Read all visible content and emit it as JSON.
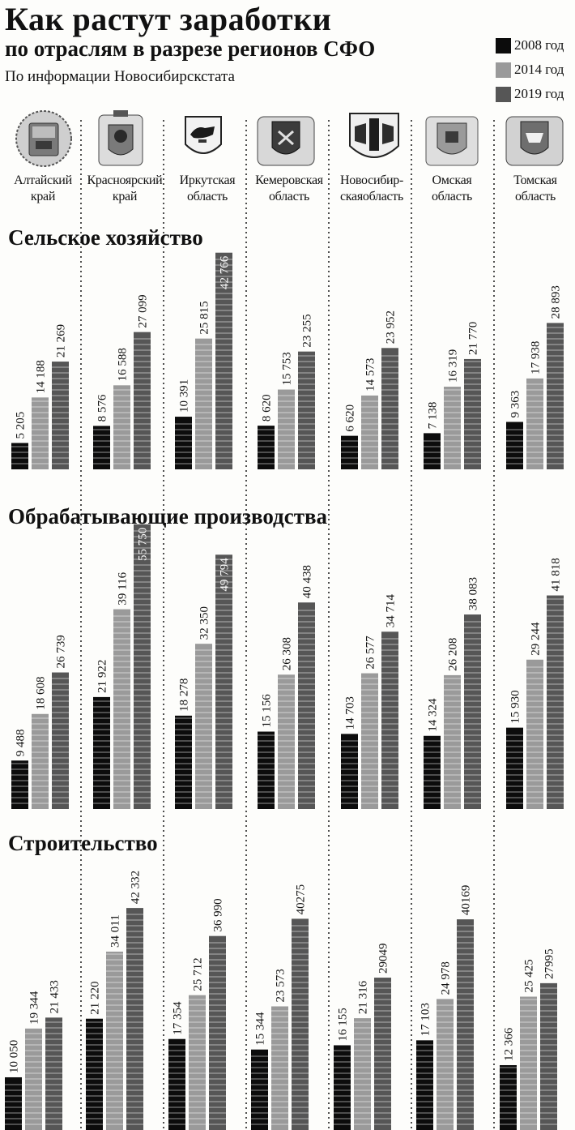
{
  "title": "Как растут заработки",
  "subtitle": "по отраслям в разрезе регионов СФО",
  "source": "По информации Новосибирскстата",
  "legend": [
    {
      "label": "2008 год",
      "color": "#0c0c0c"
    },
    {
      "label": "2014 год",
      "color": "#9a9a9a"
    },
    {
      "label": "2019 год",
      "color": "#565656"
    }
  ],
  "regions": [
    {
      "line1": "Алтайский",
      "line2": "край",
      "emblem": "altai-krai-emblem"
    },
    {
      "line1": "Красноярский",
      "line2": "край",
      "emblem": "krasnoyarsk-krai-emblem"
    },
    {
      "line1": "Иркутская",
      "line2": "область",
      "emblem": "irkutsk-oblast-emblem"
    },
    {
      "line1": "Кемеровская",
      "line2": "область",
      "emblem": "kemerovo-oblast-emblem"
    },
    {
      "line1": "Новосибир-",
      "line2": "скаяобласть",
      "emblem": "novosibirsk-oblast-emblem"
    },
    {
      "line1": "Омская",
      "line2": "область",
      "emblem": "omsk-oblast-emblem"
    },
    {
      "line1": "Томская",
      "line2": "область",
      "emblem": "tomsk-oblast-emblem"
    }
  ],
  "chart_data": [
    {
      "type": "bar",
      "title": "Сельское хозяйство",
      "categories": [
        "Алтайский край",
        "Красноярский край",
        "Иркутская область",
        "Кемеровская область",
        "Новосибирская область",
        "Омская область",
        "Томская область"
      ],
      "series": [
        {
          "name": "2008 год",
          "values": [
            5205,
            8576,
            10391,
            8620,
            6620,
            7138,
            9363
          ],
          "labels": [
            "5 205",
            "8 576",
            "10 391",
            "8 620",
            "6 620",
            "7 138",
            "9 363"
          ]
        },
        {
          "name": "2014 год",
          "values": [
            14188,
            16588,
            25815,
            15753,
            14573,
            16319,
            17938
          ],
          "labels": [
            "14 188",
            "16 588",
            "25 815",
            "15 753",
            "14 573",
            "16 319",
            "17 938"
          ]
        },
        {
          "name": "2019 год",
          "values": [
            21269,
            27099,
            42766,
            23255,
            23952,
            21770,
            28893
          ],
          "labels": [
            "21 269",
            "27 099",
            "42 766",
            "23 255",
            "23 952",
            "21 770",
            "28 893"
          ]
        }
      ]
    },
    {
      "type": "bar",
      "title": "Обрабатывающие производства",
      "categories": [
        "Алтайский край",
        "Красноярский край",
        "Иркутская область",
        "Кемеровская область",
        "Новосибирская область",
        "Омская область",
        "Томская область"
      ],
      "series": [
        {
          "name": "2008 год",
          "values": [
            9488,
            21922,
            18278,
            15156,
            14703,
            14324,
            15930
          ],
          "labels": [
            "9 488",
            "21 922",
            "18 278",
            "15 156",
            "14 703",
            "14 324",
            "15 930"
          ]
        },
        {
          "name": "2014 год",
          "values": [
            18608,
            39116,
            32350,
            26308,
            26577,
            26208,
            29244
          ],
          "labels": [
            "18 608",
            "39 116",
            "32 350",
            "26 308",
            "26 577",
            "26 208",
            "29 244"
          ]
        },
        {
          "name": "2019 год",
          "values": [
            26739,
            55750,
            49794,
            40438,
            34714,
            38083,
            41818
          ],
          "labels": [
            "26 739",
            "55 750",
            "49 794",
            "40 438",
            "34 714",
            "38 083",
            "41 818"
          ]
        }
      ]
    },
    {
      "type": "bar",
      "title": "Строительство",
      "categories": [
        "Алтайский край",
        "Красноярский край",
        "Иркутская область",
        "Кемеровская область",
        "Новосибирская область",
        "Омская область",
        "Томская область"
      ],
      "series": [
        {
          "name": "2008 год",
          "values": [
            10050,
            21220,
            17354,
            15344,
            16155,
            17103,
            12366
          ],
          "labels": [
            "10 050",
            "21 220",
            "17 354",
            "15 344",
            "16 155",
            "17 103",
            "12 366"
          ]
        },
        {
          "name": "2014 год",
          "values": [
            19344,
            34011,
            25712,
            23573,
            21316,
            24978,
            25425
          ],
          "labels": [
            "19 344",
            "34 011",
            "25 712",
            "23 573",
            "21 316",
            "24 978",
            "25 425"
          ]
        },
        {
          "name": "2019 год",
          "values": [
            21433,
            42332,
            36990,
            40275,
            29049,
            40169,
            27995
          ],
          "labels": [
            "21 433",
            "42 332",
            "36 990",
            "40275",
            "29049",
            "40169",
            "27995"
          ]
        }
      ]
    }
  ]
}
